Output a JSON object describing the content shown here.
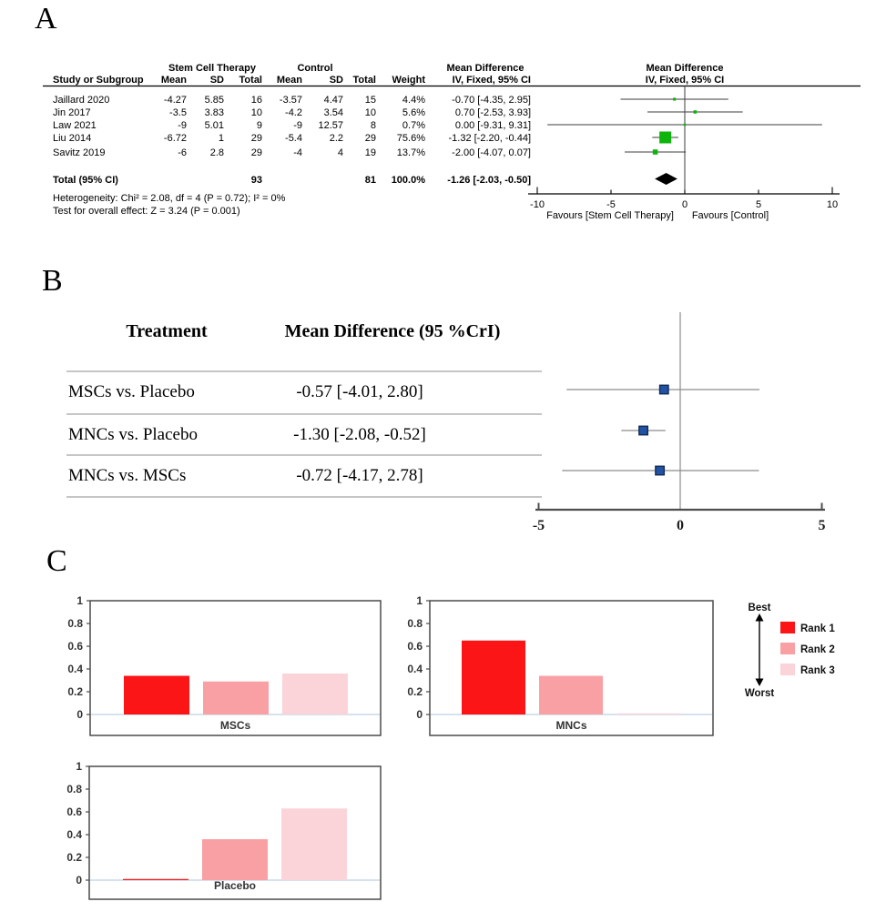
{
  "figure_labels": {
    "a": "A",
    "b": "B",
    "c": "C"
  },
  "chart_data": [
    {
      "id": "forest_plot_pairwise",
      "type": "forest",
      "panel": "A",
      "headers": {
        "study": "Study or Subgroup",
        "group_therapy": "Stem Cell Therapy",
        "group_control": "Control",
        "mean": "Mean",
        "sd": "SD",
        "total": "Total",
        "weight": "Weight",
        "md": "Mean Difference",
        "method": "IV, Fixed, 95% CI"
      },
      "studies": [
        {
          "name": "Jaillard 2020",
          "t_mean": "-4.27",
          "t_sd": "5.85",
          "t_total": "16",
          "c_mean": "-3.57",
          "c_sd": "4.47",
          "c_total": "15",
          "weight_text": "4.4%",
          "ci_text": "-0.70 [-4.35, 2.95]",
          "est": -0.7,
          "lo": -4.35,
          "hi": 2.95,
          "weight": 4.4
        },
        {
          "name": "Jin 2017",
          "t_mean": "-3.5",
          "t_sd": "3.83",
          "t_total": "10",
          "c_mean": "-4.2",
          "c_sd": "3.54",
          "c_total": "10",
          "weight_text": "5.6%",
          "ci_text": "0.70 [-2.53, 3.93]",
          "est": 0.7,
          "lo": -2.53,
          "hi": 3.93,
          "weight": 5.6
        },
        {
          "name": "Law 2021",
          "t_mean": "-9",
          "t_sd": "5.01",
          "t_total": "9",
          "c_mean": "-9",
          "c_sd": "12.57",
          "c_total": "8",
          "weight_text": "0.7%",
          "ci_text": "0.00 [-9.31, 9.31]",
          "est": 0.0,
          "lo": -9.31,
          "hi": 9.31,
          "weight": 0.7
        },
        {
          "name": "Liu 2014",
          "t_mean": "-6.72",
          "t_sd": "1",
          "t_total": "29",
          "c_mean": "-5.4",
          "c_sd": "2.2",
          "c_total": "29",
          "weight_text": "75.6%",
          "ci_text": "-1.32 [-2.20, -0.44]",
          "est": -1.32,
          "lo": -2.2,
          "hi": -0.44,
          "weight": 75.6
        },
        {
          "name": "Savitz 2019",
          "t_mean": "-6",
          "t_sd": "2.8",
          "t_total": "29",
          "c_mean": "-4",
          "c_sd": "4",
          "c_total": "19",
          "weight_text": "13.7%",
          "ci_text": "-2.00 [-4.07, 0.07]",
          "est": -2.0,
          "lo": -4.07,
          "hi": 0.07,
          "weight": 13.7
        }
      ],
      "total": {
        "label": "Total (95% CI)",
        "t_total": "93",
        "c_total": "81",
        "weight_text": "100.0%",
        "ci_text": "-1.26 [-2.03, -0.50]",
        "est": -1.26,
        "lo": -2.03,
        "hi": -0.5
      },
      "heterogeneity": "Heterogeneity: Chi² = 2.08, df = 4 (P = 0.72); I² = 0%",
      "overall_effect": "Test for overall effect: Z = 3.24 (P = 0.001)",
      "xlim": [
        -10,
        10
      ],
      "xticks": [
        -10,
        -5,
        0,
        5,
        10
      ],
      "favours_left": "Favours [Stem Cell Therapy]",
      "favours_right": "Favours [Control]",
      "colors": {
        "marker": "#0cb40c",
        "diamond": "#000000",
        "ci_line": "#3c3c3c"
      }
    },
    {
      "id": "forest_plot_network",
      "type": "forest",
      "panel": "B",
      "headers": {
        "treatment": "Treatment",
        "md": "Mean Difference (95 %CrI)"
      },
      "comparisons": [
        {
          "name": "MSCs vs. Placebo",
          "ci_text": "-0.57 [-4.01, 2.80]",
          "est": -0.57,
          "lo": -4.01,
          "hi": 2.8
        },
        {
          "name": "MNCs vs. Placebo",
          "ci_text": "-1.30 [-2.08, -0.52]",
          "est": -1.3,
          "lo": -2.08,
          "hi": -0.52
        },
        {
          "name": "MNCs vs. MSCs",
          "ci_text": "-0.72 [-4.17, 2.78]",
          "est": -0.72,
          "lo": -4.17,
          "hi": 2.78
        }
      ],
      "xlim": [
        -5,
        5
      ],
      "xticks": [
        -5,
        0,
        5
      ],
      "colors": {
        "marker": "#2152a3",
        "marker_border": "#122c54",
        "ci_line": "#8c8c8c"
      }
    },
    {
      "id": "rank_probability_bars",
      "type": "bar",
      "panel": "C",
      "categories": [
        "Rank 1",
        "Rank 2",
        "Rank 3"
      ],
      "colors": [
        "#fb1517",
        "#f9a0a4",
        "#fbd4d9"
      ],
      "charts": [
        {
          "name": "MSCs",
          "values": [
            0.34,
            0.29,
            0.36
          ]
        },
        {
          "name": "MNCs",
          "values": [
            0.65,
            0.34,
            0.01
          ]
        },
        {
          "name": "Placebo",
          "values": [
            0.01,
            0.36,
            0.63
          ]
        }
      ],
      "ylim": [
        0,
        1
      ],
      "yticks": [
        "1",
        "0.8",
        "0.6",
        "0.4",
        "0.2",
        "0"
      ],
      "legend": {
        "best": "Best",
        "worst": "Worst",
        "entries": [
          "Rank 1",
          "Rank 2",
          "Rank 3"
        ]
      },
      "axis_color": "#4a4a4a",
      "zero_line_color": "#c9d9ea"
    }
  ]
}
